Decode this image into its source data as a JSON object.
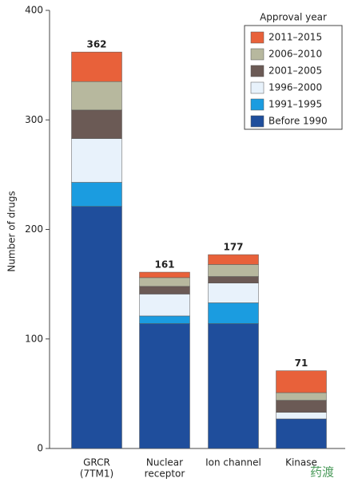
{
  "chart_data": {
    "type": "stacked_bar",
    "y_label": "Number of drugs",
    "legend_title": "Approval year",
    "legend_position": "upper right",
    "categories": [
      [
        "GRCR",
        "(7TM1)"
      ],
      [
        "Nuclear",
        "receptor"
      ],
      [
        "Ion channel"
      ],
      [
        "Kinase"
      ]
    ],
    "series": [
      {
        "name": "Before 1990",
        "color": "#1f4e9c",
        "values": [
          221,
          114,
          114,
          27
        ]
      },
      {
        "name": "1991–1995",
        "color": "#1b9ce0",
        "values": [
          22,
          7,
          19,
          0
        ]
      },
      {
        "name": "1996–2000",
        "color": "#e8f2fb",
        "values": [
          40,
          20,
          18,
          6
        ]
      },
      {
        "name": "2001–2005",
        "color": "#6b5a55",
        "values": [
          26,
          7,
          6,
          11
        ]
      },
      {
        "name": "2006–2010",
        "color": "#b7b89e",
        "values": [
          26,
          8,
          11,
          7
        ]
      },
      {
        "name": "2011–2015",
        "color": "#e8613a",
        "values": [
          27,
          5,
          9,
          20
        ]
      }
    ],
    "totals": [
      362,
      161,
      177,
      71
    ],
    "ylim": [
      0,
      400
    ],
    "yticks": [
      0,
      100,
      200,
      300,
      400
    ],
    "watermark": "药渡"
  }
}
